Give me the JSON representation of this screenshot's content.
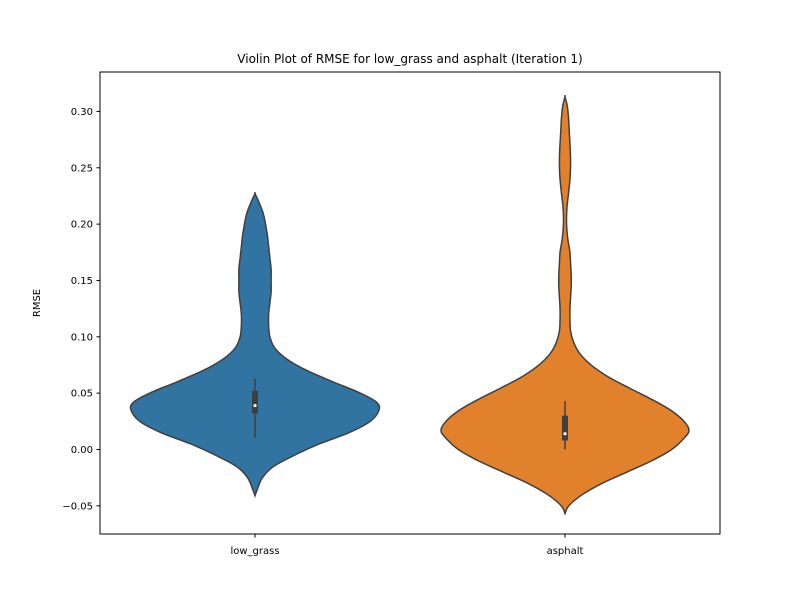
{
  "chart_data": {
    "type": "violin",
    "title": "Violin Plot of RMSE for low_grass and asphalt (Iteration 1)",
    "xlabel": "",
    "ylabel": "RMSE",
    "ylim": [
      -0.075,
      0.335
    ],
    "yticks": [
      -0.05,
      0.0,
      0.05,
      0.1,
      0.15,
      0.2,
      0.25,
      0.3
    ],
    "ytick_labels": [
      "−0.05",
      "0.00",
      "0.05",
      "0.10",
      "0.15",
      "0.20",
      "0.25",
      "0.30"
    ],
    "grid": false,
    "categories": [
      "low_grass",
      "asphalt"
    ],
    "series": [
      {
        "category": "low_grass",
        "color": "#3274a1",
        "box": {
          "whisker_low": 0.01,
          "q1": 0.032,
          "median": 0.039,
          "q3": 0.052,
          "whisker_high": 0.063
        },
        "density": [
          [
            -0.041,
            0.0
          ],
          [
            -0.035,
            0.02
          ],
          [
            -0.025,
            0.06
          ],
          [
            -0.015,
            0.15
          ],
          [
            -0.005,
            0.32
          ],
          [
            0.005,
            0.52
          ],
          [
            0.015,
            0.76
          ],
          [
            0.025,
            0.93
          ],
          [
            0.035,
            1.0
          ],
          [
            0.042,
            0.98
          ],
          [
            0.05,
            0.85
          ],
          [
            0.06,
            0.63
          ],
          [
            0.07,
            0.42
          ],
          [
            0.08,
            0.26
          ],
          [
            0.09,
            0.16
          ],
          [
            0.1,
            0.12
          ],
          [
            0.11,
            0.11
          ],
          [
            0.12,
            0.11
          ],
          [
            0.13,
            0.12
          ],
          [
            0.14,
            0.13
          ],
          [
            0.15,
            0.13
          ],
          [
            0.16,
            0.13
          ],
          [
            0.17,
            0.12
          ],
          [
            0.18,
            0.11
          ],
          [
            0.19,
            0.1
          ],
          [
            0.2,
            0.085
          ],
          [
            0.21,
            0.065
          ],
          [
            0.22,
            0.03
          ],
          [
            0.227,
            0.0
          ]
        ]
      },
      {
        "category": "asphalt",
        "color": "#e1812c",
        "box": {
          "whisker_low": 0.0,
          "q1": 0.008,
          "median": 0.014,
          "q3": 0.03,
          "whisker_high": 0.043
        },
        "density": [
          [
            -0.057,
            0.0
          ],
          [
            -0.05,
            0.03
          ],
          [
            -0.04,
            0.14
          ],
          [
            -0.03,
            0.3
          ],
          [
            -0.02,
            0.5
          ],
          [
            -0.01,
            0.7
          ],
          [
            0.0,
            0.86
          ],
          [
            0.01,
            0.96
          ],
          [
            0.017,
            1.0
          ],
          [
            0.025,
            0.96
          ],
          [
            0.035,
            0.85
          ],
          [
            0.045,
            0.69
          ],
          [
            0.055,
            0.51
          ],
          [
            0.065,
            0.34
          ],
          [
            0.075,
            0.21
          ],
          [
            0.085,
            0.12
          ],
          [
            0.095,
            0.07
          ],
          [
            0.105,
            0.045
          ],
          [
            0.115,
            0.04
          ],
          [
            0.125,
            0.04
          ],
          [
            0.135,
            0.045
          ],
          [
            0.145,
            0.05
          ],
          [
            0.155,
            0.05
          ],
          [
            0.165,
            0.045
          ],
          [
            0.175,
            0.04
          ],
          [
            0.185,
            0.025
          ],
          [
            0.195,
            0.015
          ],
          [
            0.205,
            0.012
          ],
          [
            0.215,
            0.016
          ],
          [
            0.225,
            0.026
          ],
          [
            0.235,
            0.036
          ],
          [
            0.245,
            0.043
          ],
          [
            0.255,
            0.045
          ],
          [
            0.265,
            0.043
          ],
          [
            0.275,
            0.038
          ],
          [
            0.285,
            0.033
          ],
          [
            0.295,
            0.028
          ],
          [
            0.305,
            0.018
          ],
          [
            0.313,
            0.0
          ]
        ]
      }
    ]
  }
}
